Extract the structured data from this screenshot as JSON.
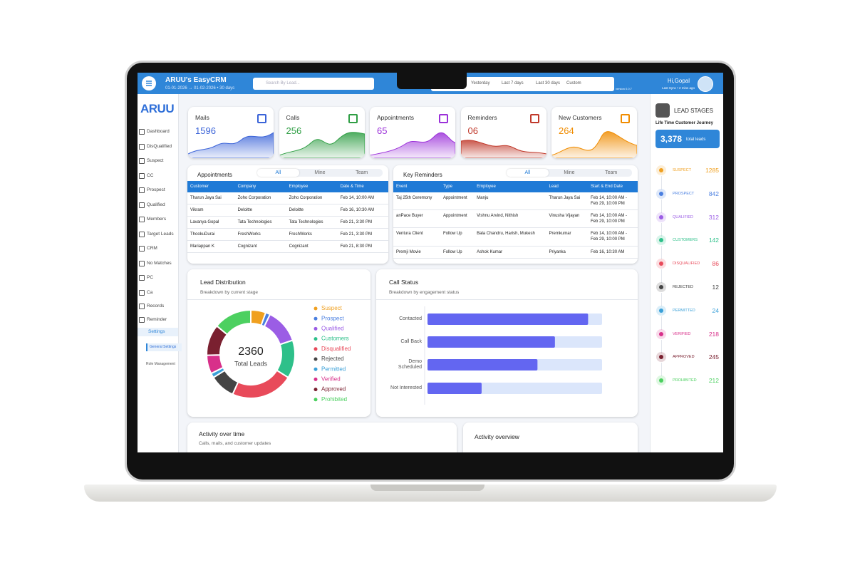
{
  "header": {
    "app_name": "ARUU's EasyCRM",
    "date_range": "01-01-2026 → 01-02-2026 • 30 days",
    "search_placeholder": "Search By Lead...",
    "filters": [
      "Yesterday",
      "Last 7 days",
      "Last 30 days",
      "Custom"
    ],
    "version": "version 0.0.7",
    "greeting": "Hi,Gopal",
    "last_sync": "Last Sync • 2 mins ago"
  },
  "sidebar": {
    "logo": "ARUU",
    "items": [
      "Dashboard",
      "DisQualified",
      "Suspect",
      "CC",
      "Prospect",
      "Qualified",
      "Members",
      "Target Leads",
      "CRM",
      "No Matches",
      "PC",
      "Ca",
      "Records",
      "Reminder"
    ],
    "settings": "Settings",
    "sub_items": [
      "General Settings",
      "Role Management"
    ]
  },
  "stats": [
    {
      "label": "Mails",
      "value": 1596,
      "color": "#3a63d8"
    },
    {
      "label": "Calls",
      "value": 256,
      "color": "#2f9e44"
    },
    {
      "label": "Appointments",
      "value": 65,
      "color": "#9b30d9"
    },
    {
      "label": "Reminders",
      "value": "06",
      "color": "#c0392b"
    },
    {
      "label": "New Customers",
      "value": 264,
      "color": "#f08c00"
    }
  ],
  "appointments": {
    "title": "Appointments",
    "tabs": [
      "All",
      "Mine",
      "Team"
    ],
    "columns": [
      "Customer",
      "Company",
      "Employee",
      "Date & Time"
    ],
    "rows": [
      [
        "Tharun Jaya Sai",
        "Zoho Corporation",
        "Zoho Corporation",
        "Feb 14, 10:00 AM"
      ],
      [
        "Vikram",
        "Deloitte",
        "Deloitte",
        "Feb 16, 10:30 AM"
      ],
      [
        "Lavanya Gopal",
        "Tata Technologies",
        "Tata Technologies",
        "Feb 21, 3:30 PM"
      ],
      [
        "ThookuDurai",
        "FreshWorks",
        "FreshWorks",
        "Feb 21, 3:30 PM"
      ],
      [
        "Mariappan K",
        "Cognizant",
        "Cognizant",
        "Feb 21, 8:30 PM"
      ]
    ]
  },
  "reminders": {
    "title": "Key Reminders",
    "tabs": [
      "All",
      "Mine",
      "Team"
    ],
    "columns": [
      "Event",
      "Type",
      "Employee",
      "Lead",
      "Start & End Date"
    ],
    "rows": [
      [
        "Taj 25th Ceremony",
        "Appointment",
        "Manju",
        "Tharun Jaya Sai",
        "Feb 14, 10:00 AM - Feb 29, 10:00 PM"
      ],
      [
        "anPace Buyer",
        "Appointment",
        "Vishnu Arvind, Nithish",
        "Vinusha Vijayan",
        "Feb 14, 10:00 AM - Feb 29, 10:00 PM"
      ],
      [
        "Ventura Client",
        "Follow Up",
        "Bala Chandru, Harish, Mukesh",
        "Premkumar",
        "Feb 14, 10:00 AM - Feb 29, 10:00 PM"
      ],
      [
        "Premji Movie",
        "Follow Up",
        "Ashok Kumar",
        "Priyanka",
        "Feb 16, 10:30 AM"
      ]
    ]
  },
  "chart_data": [
    {
      "type": "pie",
      "title": "Lead Distribution",
      "subtitle": "Breakdown by current stage",
      "center_value": 2360,
      "center_label": "Total Leads",
      "categories": [
        "Suspect",
        "Prospect",
        "Qualified",
        "Customers",
        "Disqualified",
        "Rejected",
        "Permitted",
        "Verified",
        "Approved",
        "Prohibited"
      ],
      "values": [
        130,
        40,
        300,
        330,
        540,
        220,
        40,
        160,
        270,
        330
      ],
      "colors": [
        "#f0a020",
        "#4a7fe0",
        "#9b5de5",
        "#2ec08a",
        "#e84a5a",
        "#444444",
        "#3aa0d8",
        "#d8308a",
        "#7a2030",
        "#4cd060"
      ]
    },
    {
      "type": "bar",
      "orientation": "horizontal",
      "title": "Call Status",
      "subtitle": "Breakdown by engagement status",
      "categories": [
        "Contacted",
        "Call Back",
        "Demo Scheduled",
        "Not Interested"
      ],
      "values": [
        92,
        73,
        63,
        31
      ],
      "xlim": [
        0,
        100
      ],
      "color": "#6366f1",
      "track_color": "#dbe6fb"
    }
  ],
  "activity": [
    {
      "title": "Activity over time",
      "subtitle": "Calls, mails, and customer updates"
    },
    {
      "title": "Activity overview"
    }
  ],
  "lead_stages": {
    "title": "LEAD STAGES",
    "subtitle": "Life Time Customer Journey",
    "total": "3,378",
    "total_label": "total leads",
    "stages": [
      {
        "name": "SUSPECT",
        "count": 1285,
        "color": "#f0a020"
      },
      {
        "name": "PROSPECT",
        "count": 842,
        "color": "#4a7fe0"
      },
      {
        "name": "QUALIFIED",
        "count": 312,
        "color": "#9b5de5"
      },
      {
        "name": "CUSTOMERS",
        "count": 142,
        "color": "#2ec08a"
      },
      {
        "name": "DISQUALIFIED",
        "count": 86,
        "color": "#e84a5a"
      },
      {
        "name": "REJECTED",
        "count": 12,
        "color": "#444444"
      },
      {
        "name": "PERMITTED",
        "count": 24,
        "color": "#3aa0d8"
      },
      {
        "name": "VERIFIED",
        "count": 218,
        "color": "#d8308a"
      },
      {
        "name": "APPROVED",
        "count": 245,
        "color": "#7a2030"
      },
      {
        "name": "PROHIBITED",
        "count": 212,
        "color": "#4cd060"
      }
    ]
  }
}
